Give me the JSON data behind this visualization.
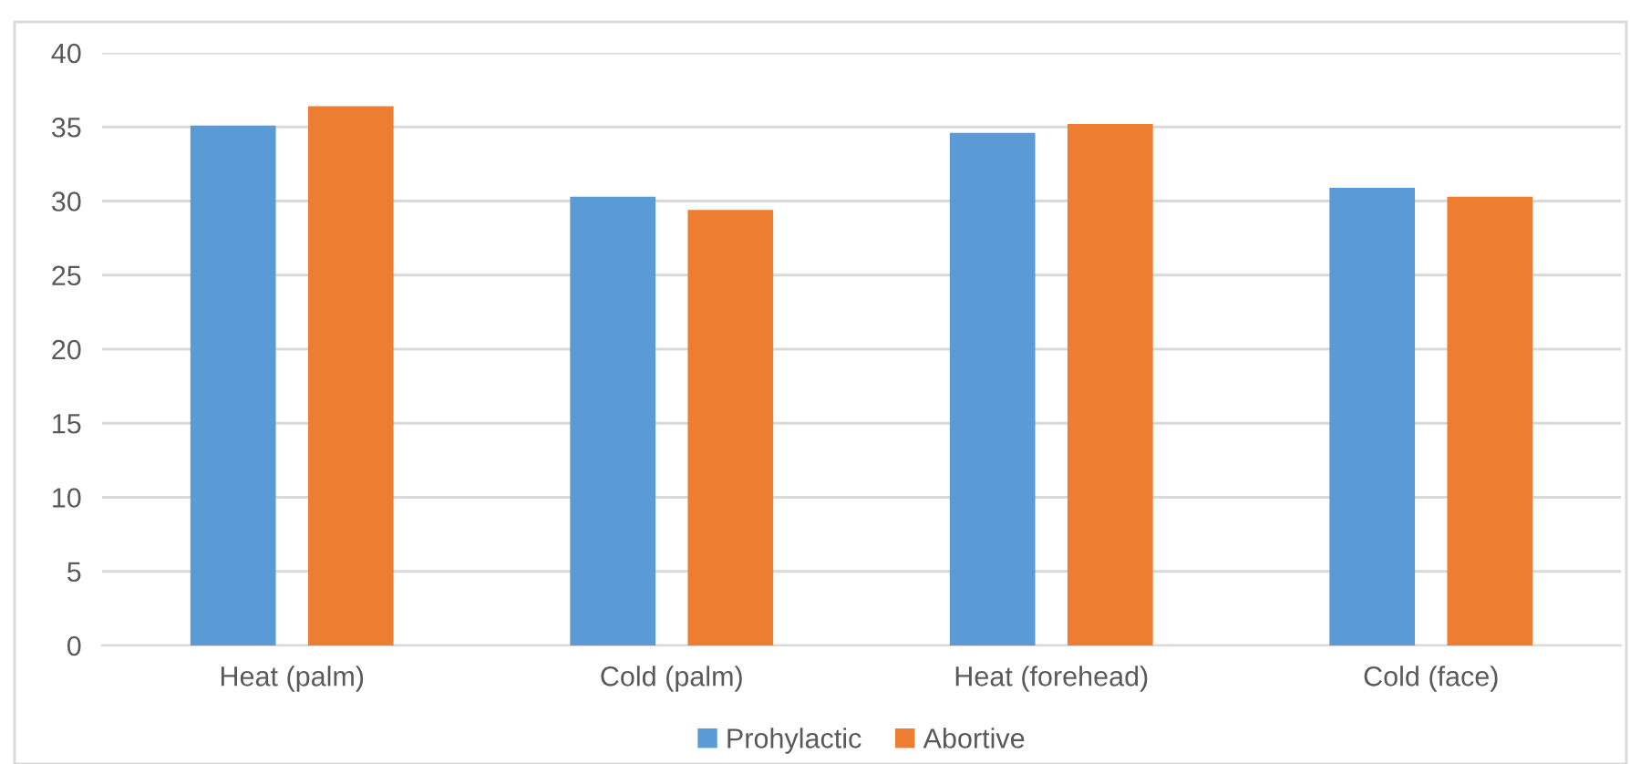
{
  "chart_data": {
    "type": "bar",
    "categories": [
      "Heat (palm)",
      "Cold (palm)",
      "Heat (forehead)",
      "Cold (face)"
    ],
    "series": [
      {
        "name": "Prohylactic",
        "color": "#5b9bd5",
        "values": [
          35.1,
          30.3,
          34.6,
          30.9
        ]
      },
      {
        "name": "Abortive",
        "color": "#ed7d31",
        "values": [
          36.4,
          29.4,
          35.2,
          30.3
        ]
      }
    ],
    "ylim": [
      0,
      40
    ],
    "yticks": [
      0,
      5,
      10,
      15,
      20,
      25,
      30,
      35,
      40
    ],
    "grid": "y",
    "legend": "bottom"
  }
}
